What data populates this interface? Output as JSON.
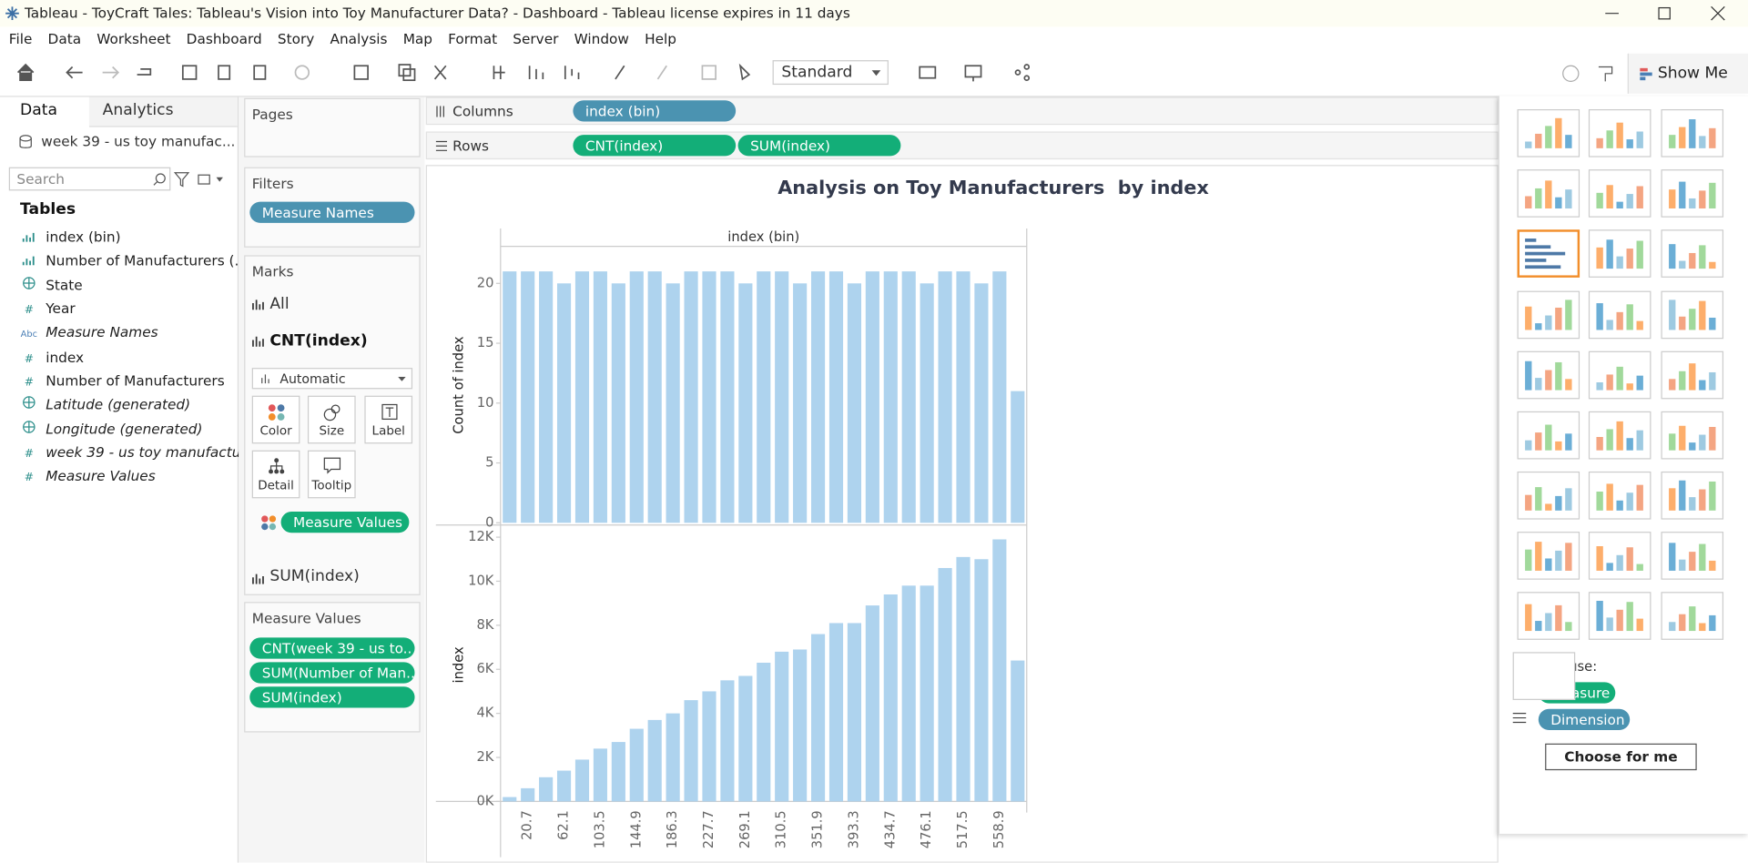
{
  "window": {
    "title": "Tableau - ToyCraft Tales: Tableau's Vision into Toy Manufacturer Data? - Dashboard - Tableau license expires in 11 days"
  },
  "menu": [
    "File",
    "Data",
    "Worksheet",
    "Dashboard",
    "Story",
    "Analysis",
    "Map",
    "Format",
    "Server",
    "Window",
    "Help"
  ],
  "toolbar": {
    "fit": "Standard",
    "show_me": "Show Me"
  },
  "data_pane": {
    "tabs": [
      "Data",
      "Analytics"
    ],
    "source": "week 39 - us toy manufac...",
    "search": "Search",
    "tables": "Tables",
    "fields": [
      {
        "label": "index (bin)"
      },
      {
        "label": "Number of Manufacturers (..."
      },
      {
        "label": "State"
      },
      {
        "label": "Year",
        "icon": "#"
      },
      {
        "label": "Measure Names",
        "icon": "Abc"
      },
      {
        "label": "index",
        "icon": "#"
      },
      {
        "label": "Number of Manufacturers",
        "icon": "#"
      },
      {
        "label": "Latitude (generated)"
      },
      {
        "label": "Longitude (generated)"
      },
      {
        "label": "week 39 - us toy manufactu...",
        "icon": "#"
      },
      {
        "label": "Measure Values",
        "icon": "#"
      }
    ]
  },
  "pages": {
    "title": "Pages"
  },
  "filters": {
    "title": "Filters",
    "pills": [
      "Measure Names"
    ]
  },
  "marks": {
    "title": "Marks",
    "layers": [
      "All",
      "CNT(index)",
      "SUM(index)"
    ],
    "mark_type": "Automatic",
    "buttons": [
      "Color",
      "Size",
      "Label",
      "Detail",
      "Tooltip"
    ],
    "pill": "Measure Values"
  },
  "measure_values": {
    "title": "Measure Values",
    "pills": [
      "CNT(week 39 - us to..",
      "SUM(Number of Man..",
      "SUM(index)"
    ]
  },
  "columns": {
    "label": "Columns",
    "pills": [
      "index (bin)"
    ]
  },
  "rows": {
    "label": "Rows",
    "pills": [
      "CNT(index)",
      "SUM(index)"
    ]
  },
  "chart_data": [
    {
      "type": "bar",
      "title": "Analysis on Toy Manufacturers  by index",
      "x_header": "index (bin)",
      "ylabel": "Count of index",
      "color": "#aed3ee",
      "values": [
        21,
        21,
        21,
        20,
        21,
        21,
        20,
        21,
        21,
        20,
        21,
        21,
        21,
        20,
        21,
        21,
        20,
        21,
        21,
        20,
        21,
        21,
        21,
        20,
        21,
        21,
        20,
        21,
        11
      ],
      "ylim": [
        0,
        23
      ],
      "yticks": [
        0,
        5,
        10,
        15,
        20
      ]
    },
    {
      "type": "bar",
      "ylabel": "index",
      "color": "#aed3ee",
      "categories": [
        null,
        "20.7",
        null,
        "62.1",
        null,
        "103.5",
        null,
        "144.9",
        null,
        "186.3",
        null,
        "227.7",
        null,
        "269.1",
        null,
        "310.5",
        null,
        "351.9",
        null,
        "393.3",
        null,
        "434.7",
        null,
        "476.1",
        null,
        "517.5",
        null,
        "558.9",
        null
      ],
      "values": [
        200,
        600,
        1100,
        1400,
        1900,
        2400,
        2700,
        3300,
        3700,
        4000,
        4600,
        5000,
        5500,
        5700,
        6300,
        6800,
        6900,
        7600,
        8100,
        8100,
        8900,
        9400,
        9800,
        9800,
        10600,
        11100,
        11000,
        11900,
        6400
      ],
      "ylim": [
        0,
        12400
      ],
      "yticks": [
        {
          "value": 0,
          "label": "0K"
        },
        {
          "value": 2000,
          "label": "2K"
        },
        {
          "value": 4000,
          "label": "4K"
        },
        {
          "value": 6000,
          "label": "6K"
        },
        {
          "value": 8000,
          "label": "8K"
        },
        {
          "value": 10000,
          "label": "10K"
        },
        {
          "value": 12000,
          "label": "12K"
        }
      ]
    }
  ],
  "show_me": {
    "heading": "for bars use:",
    "legend": [
      "Measure",
      "Dimension"
    ],
    "button": "Choose for me"
  }
}
